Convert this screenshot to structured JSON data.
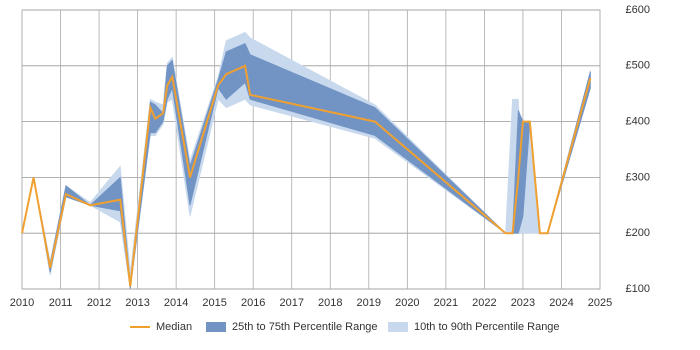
{
  "chart_data": {
    "type": "line",
    "x": [
      2010.0,
      2010.3,
      2010.73,
      2011.14,
      2011.77,
      2012.55,
      2012.81,
      2013.33,
      2013.46,
      2013.66,
      2013.77,
      2013.9,
      2014.36,
      2015.09,
      2015.3,
      2015.79,
      2015.92,
      2019.16,
      2022.55,
      2022.73,
      2022.88,
      2023.0,
      2023.18,
      2023.44,
      2023.64,
      2024.75
    ],
    "series": [
      {
        "name": "Median",
        "color": "#f0a030",
        "values": [
          200,
          300,
          138,
          270,
          250,
          260,
          105,
          425,
          405,
          415,
          465,
          480,
          300,
          465,
          485,
          500,
          448,
          400,
          200,
          200,
          300,
          400,
          400,
          200,
          200,
          478
        ]
      }
    ],
    "bands": [
      {
        "name": "10th to 90th Percentile Range",
        "color": "#c8d9ee",
        "upper": [
          200,
          300,
          150,
          285,
          255,
          320,
          130,
          440,
          435,
          430,
          505,
          515,
          330,
          480,
          545,
          560,
          550,
          430,
          200,
          440,
          440,
          260,
          400,
          200,
          200,
          490
        ],
        "lower": [
          200,
          300,
          125,
          265,
          250,
          220,
          100,
          375,
          375,
          395,
          435,
          440,
          230,
          440,
          425,
          440,
          430,
          370,
          200,
          200,
          200,
          200,
          200,
          200,
          200,
          460
        ]
      },
      {
        "name": "25th to 75th Percentile Range",
        "color": "#7194c4",
        "upper": [
          200,
          300,
          145,
          285,
          250,
          300,
          110,
          435,
          430,
          415,
          500,
          510,
          320,
          475,
          525,
          540,
          520,
          425,
          200,
          200,
          420,
          400,
          400,
          200,
          200,
          490
        ],
        "lower": [
          200,
          300,
          130,
          265,
          250,
          240,
          100,
          380,
          380,
          400,
          440,
          460,
          250,
          460,
          440,
          470,
          440,
          375,
          200,
          200,
          200,
          230,
          400,
          200,
          200,
          460
        ]
      }
    ],
    "xlim": [
      2010,
      2025
    ],
    "xticks": [
      2010,
      2011,
      2012,
      2013,
      2014,
      2015,
      2016,
      2017,
      2018,
      2019,
      2020,
      2021,
      2022,
      2023,
      2024,
      2025
    ],
    "ylim": [
      100,
      600
    ],
    "yticks": [
      {
        "value": 100,
        "label": "£100"
      },
      {
        "value": 200,
        "label": "£200"
      },
      {
        "value": 300,
        "label": "£300"
      },
      {
        "value": 400,
        "label": "£400"
      },
      {
        "value": 500,
        "label": "£500"
      },
      {
        "value": 600,
        "label": "£600"
      }
    ],
    "grid": true
  }
}
